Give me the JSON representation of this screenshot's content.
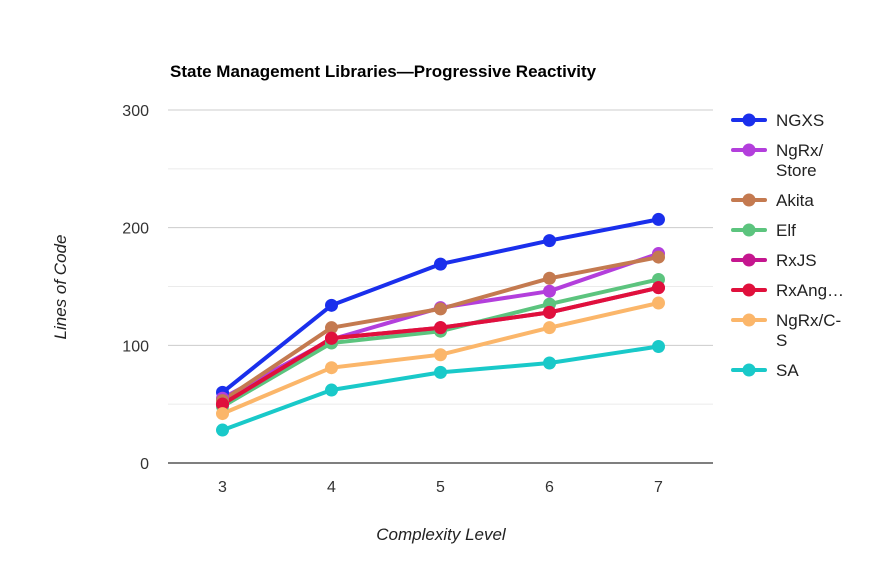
{
  "chart_data": {
    "type": "line",
    "title": "State Management Libraries—Progressive Reactivity",
    "xlabel": "Complexity Level",
    "ylabel": "Lines of Code",
    "x": [
      3,
      4,
      5,
      6,
      7
    ],
    "x_tick_labels": [
      "3",
      "4",
      "5",
      "6",
      "7"
    ],
    "ylim": [
      0,
      300
    ],
    "y_tick_labels": [
      "0",
      "100",
      "200",
      "300"
    ],
    "grid": true,
    "legend_position": "right",
    "series": [
      {
        "name": "NGXS",
        "legend_lines": [
          "NGXS"
        ],
        "color": "#1a2fec",
        "values": [
          60,
          134,
          169,
          189,
          207
        ]
      },
      {
        "name": "NgRx/Store",
        "legend_lines": [
          "NgRx/",
          "Store"
        ],
        "color": "#b33fdc",
        "values": [
          55,
          105,
          132,
          146,
          178
        ]
      },
      {
        "name": "Akita",
        "legend_lines": [
          "Akita"
        ],
        "color": "#c47a50",
        "values": [
          53,
          115,
          131,
          157,
          175
        ]
      },
      {
        "name": "Elf",
        "legend_lines": [
          "Elf"
        ],
        "color": "#5cc47e",
        "values": [
          48,
          102,
          112,
          135,
          156
        ]
      },
      {
        "name": "RxJS",
        "legend_lines": [
          "RxJS"
        ],
        "color": "#c5168f",
        "values": [
          50,
          106,
          115,
          128,
          149
        ]
      },
      {
        "name": "RxAng…",
        "legend_lines": [
          "RxAng…"
        ],
        "color": "#e0103c",
        "values": [
          50,
          106,
          115,
          128,
          149
        ]
      },
      {
        "name": "NgRx/C-S",
        "legend_lines": [
          "NgRx/C-",
          "S"
        ],
        "color": "#fbb66a",
        "values": [
          42,
          81,
          92,
          115,
          136
        ]
      },
      {
        "name": "SA",
        "legend_lines": [
          "SA"
        ],
        "color": "#19c9c9",
        "values": [
          28,
          62,
          77,
          85,
          99
        ]
      }
    ]
  }
}
